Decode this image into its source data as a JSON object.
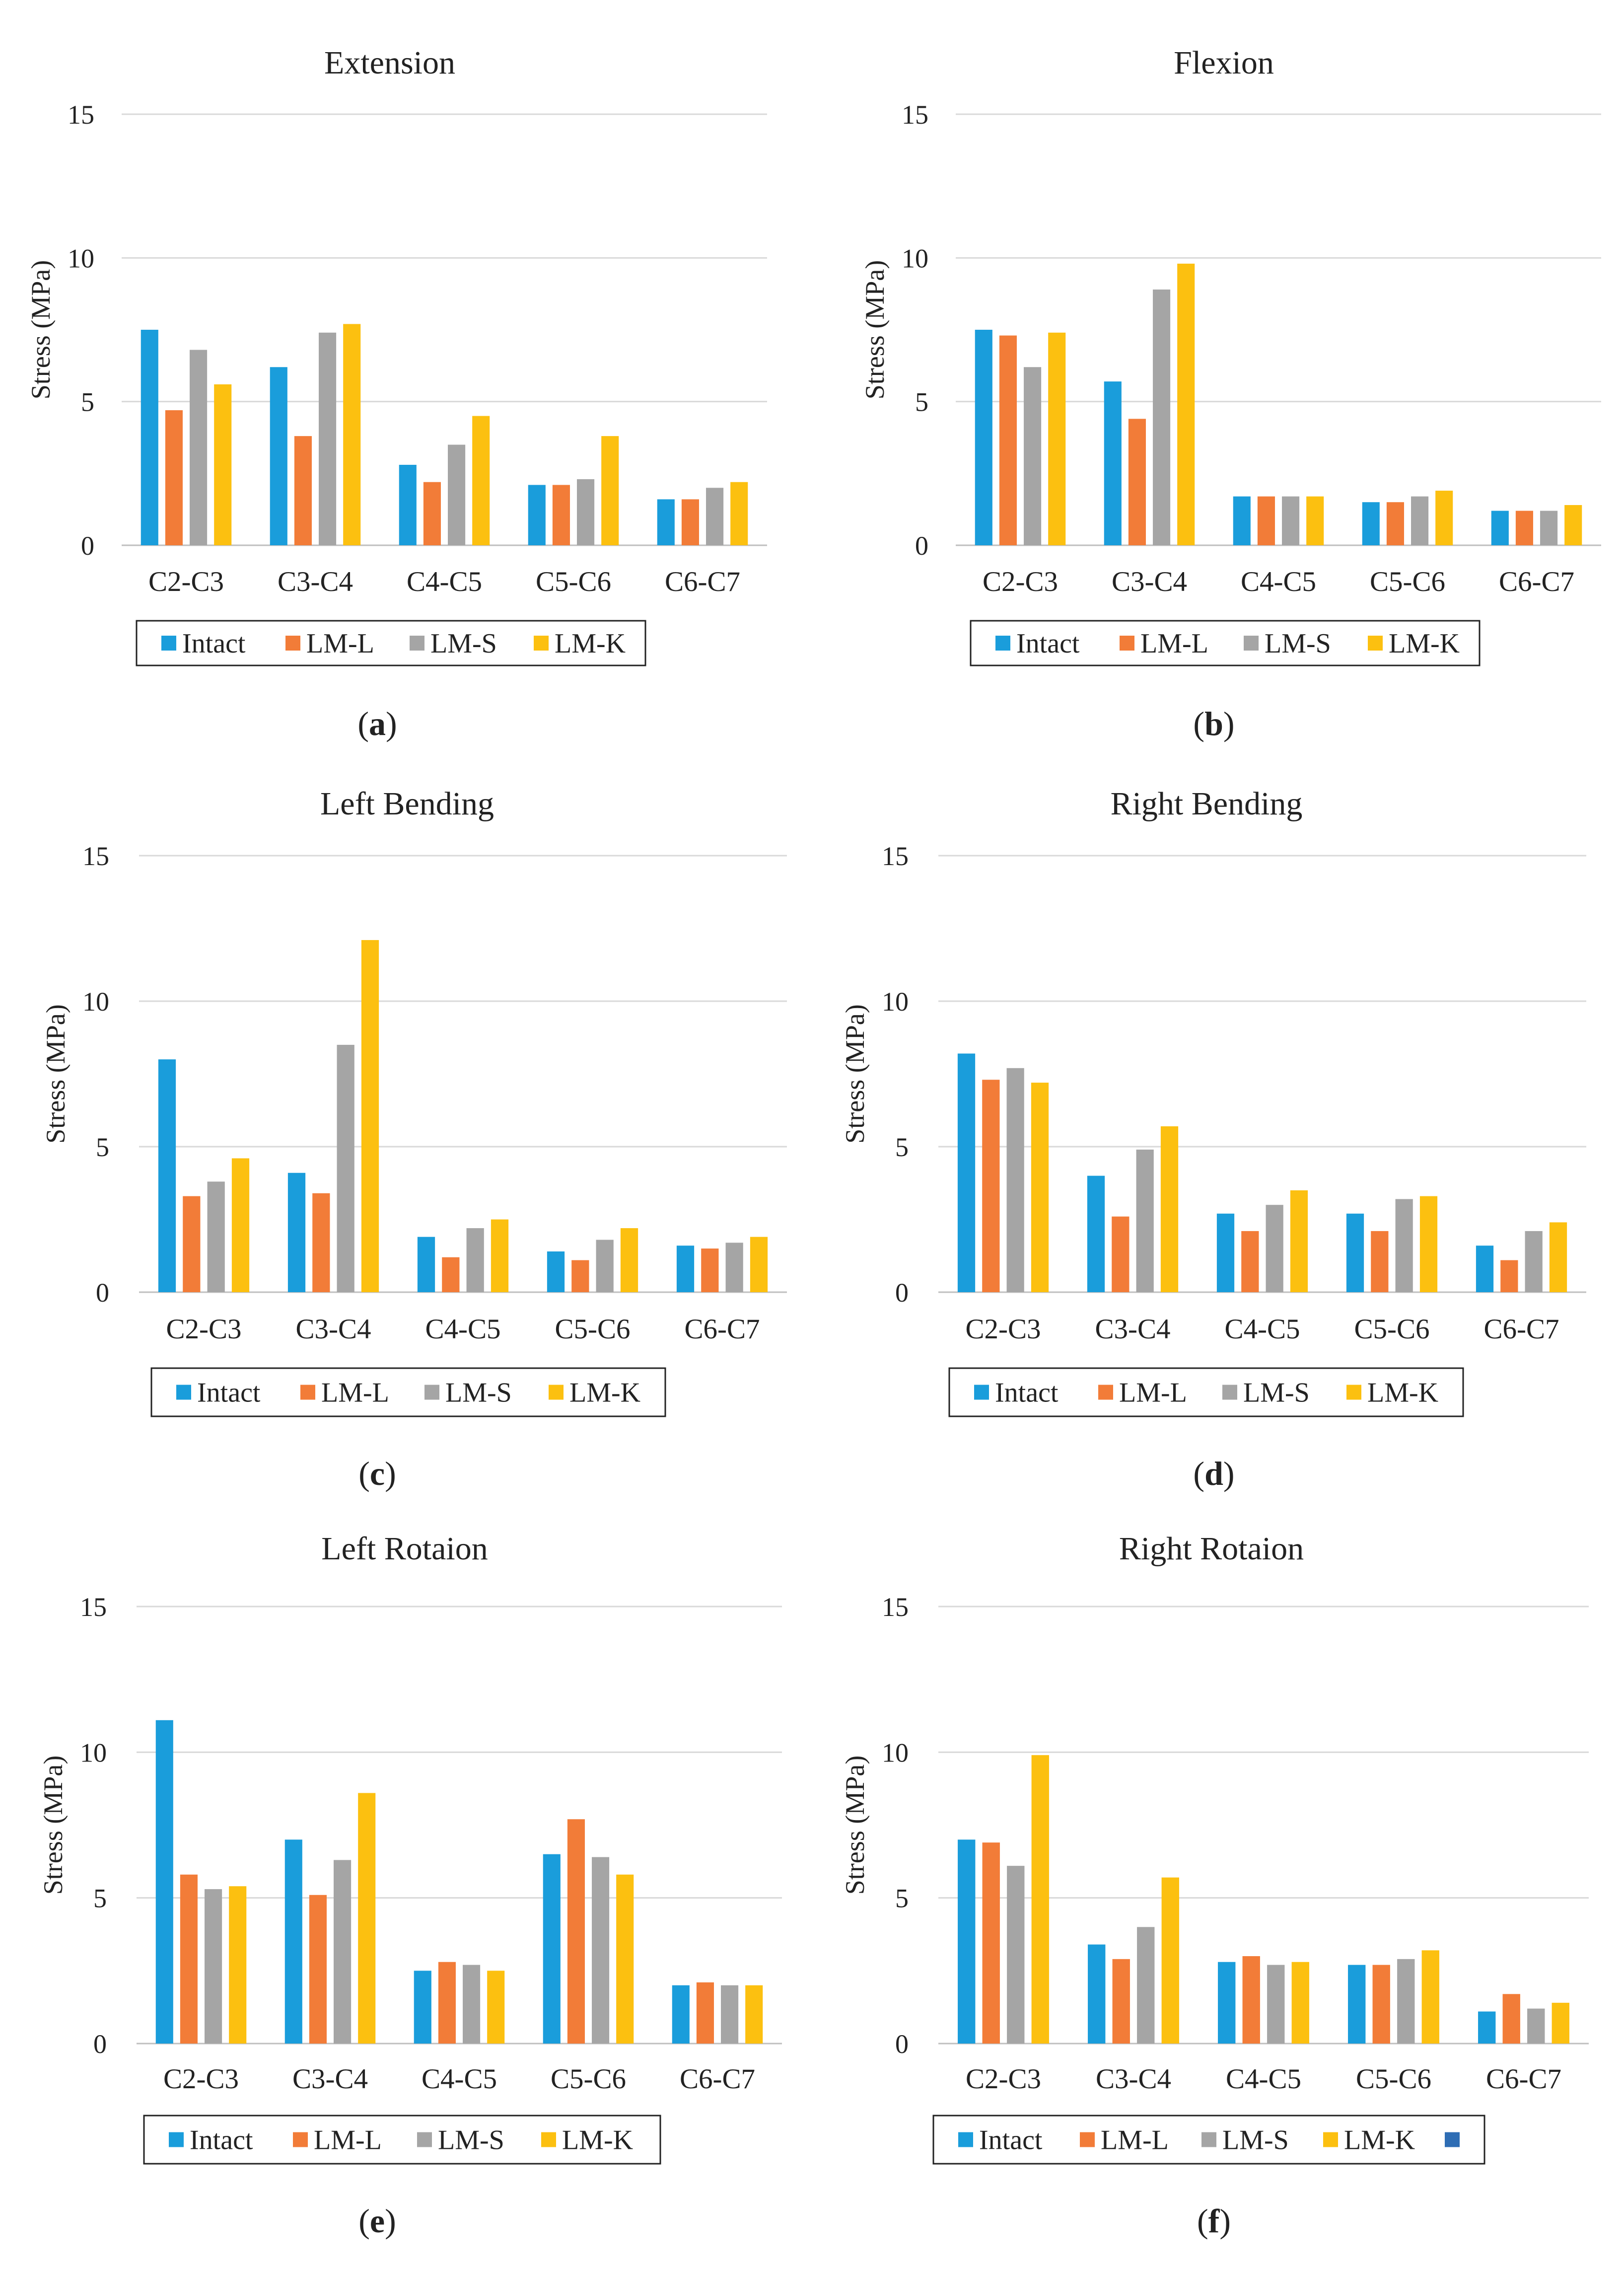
{
  "colors": {
    "Intact": "#1A9DDB",
    "LM-L": "#F27C38",
    "LM-S": "#A5A5A5",
    "LM-K": "#FCC010",
    "extra": "#2E6DB4",
    "grid": "#D9D9D9",
    "text": "#222222"
  },
  "chart_data": [
    {
      "type": "bar",
      "title": "Extension",
      "panel_label": "(a)",
      "label_letter": "a",
      "ylabel": "Stress (MPa)",
      "ylim": [
        0,
        15
      ],
      "yticks": [
        0,
        5,
        10,
        15
      ],
      "categories": [
        "C2-C3",
        "C3-C4",
        "C4-C5",
        "C5-C6",
        "C6-C7"
      ],
      "series": [
        {
          "name": "Intact",
          "values": [
            7.5,
            6.2,
            2.8,
            2.1,
            1.6
          ]
        },
        {
          "name": "LM-L",
          "values": [
            4.7,
            3.8,
            2.2,
            2.1,
            1.6
          ]
        },
        {
          "name": "LM-S",
          "values": [
            6.8,
            7.4,
            3.5,
            2.3,
            2.0
          ]
        },
        {
          "name": "LM-K",
          "values": [
            5.6,
            7.7,
            4.5,
            3.8,
            2.2
          ]
        }
      ],
      "legend_entries": [
        "Intact",
        "LM-L",
        "LM-S",
        "LM-K"
      ]
    },
    {
      "type": "bar",
      "title": "Flexion",
      "panel_label": "(b)",
      "label_letter": "b",
      "ylabel": "Stress (MPa)",
      "ylim": [
        0,
        15
      ],
      "yticks": [
        0,
        5,
        10,
        15
      ],
      "categories": [
        "C2-C3",
        "C3-C4",
        "C4-C5",
        "C5-C6",
        "C6-C7"
      ],
      "series": [
        {
          "name": "Intact",
          "values": [
            7.5,
            5.7,
            1.7,
            1.5,
            1.2
          ]
        },
        {
          "name": "LM-L",
          "values": [
            7.3,
            4.4,
            1.7,
            1.5,
            1.2
          ]
        },
        {
          "name": "LM-S",
          "values": [
            6.2,
            8.9,
            1.7,
            1.7,
            1.2
          ]
        },
        {
          "name": "LM-K",
          "values": [
            7.4,
            9.8,
            1.7,
            1.9,
            1.4
          ]
        }
      ],
      "legend_entries": [
        "Intact",
        "LM-L",
        "LM-S",
        "LM-K"
      ]
    },
    {
      "type": "bar",
      "title": "Left Bending",
      "panel_label": "(c)",
      "label_letter": "c",
      "ylabel": "Stress (MPa)",
      "ylim": [
        0,
        15
      ],
      "yticks": [
        0,
        5,
        10,
        15
      ],
      "categories": [
        "C2-C3",
        "C3-C4",
        "C4-C5",
        "C5-C6",
        "C6-C7"
      ],
      "series": [
        {
          "name": "Intact",
          "values": [
            8.0,
            4.1,
            1.9,
            1.4,
            1.6
          ]
        },
        {
          "name": "LM-L",
          "values": [
            3.3,
            3.4,
            1.2,
            1.1,
            1.5
          ]
        },
        {
          "name": "LM-S",
          "values": [
            3.8,
            8.5,
            2.2,
            1.8,
            1.7
          ]
        },
        {
          "name": "LM-K",
          "values": [
            4.6,
            12.1,
            2.5,
            2.2,
            1.9
          ]
        }
      ],
      "legend_entries": [
        "Intact",
        "LM-L",
        "LM-S",
        "LM-K"
      ]
    },
    {
      "type": "bar",
      "title": "Right Bending",
      "panel_label": "(d)",
      "label_letter": "d",
      "ylabel": "Stress (MPa)",
      "ylim": [
        0,
        15
      ],
      "yticks": [
        0,
        5,
        10,
        15
      ],
      "categories": [
        "C2-C3",
        "C3-C4",
        "C4-C5",
        "C5-C6",
        "C6-C7"
      ],
      "series": [
        {
          "name": "Intact",
          "values": [
            8.2,
            4.0,
            2.7,
            2.7,
            1.6
          ]
        },
        {
          "name": "LM-L",
          "values": [
            7.3,
            2.6,
            2.1,
            2.1,
            1.1
          ]
        },
        {
          "name": "LM-S",
          "values": [
            7.7,
            4.9,
            3.0,
            3.2,
            2.1
          ]
        },
        {
          "name": "LM-K",
          "values": [
            7.2,
            5.7,
            3.5,
            3.3,
            2.4
          ]
        }
      ],
      "legend_entries": [
        "Intact",
        "LM-L",
        "LM-S",
        "LM-K"
      ]
    },
    {
      "type": "bar",
      "title": "Left Rotaion",
      "panel_label": "(e)",
      "label_letter": "e",
      "ylabel": "Stress (MPa)",
      "ylim": [
        0,
        15
      ],
      "yticks": [
        0,
        5,
        10,
        15
      ],
      "categories": [
        "C2-C3",
        "C3-C4",
        "C4-C5",
        "C5-C6",
        "C6-C7"
      ],
      "series": [
        {
          "name": "Intact",
          "values": [
            11.1,
            7.0,
            2.5,
            6.5,
            2.0
          ]
        },
        {
          "name": "LM-L",
          "values": [
            5.8,
            5.1,
            2.8,
            7.7,
            2.1
          ]
        },
        {
          "name": "LM-S",
          "values": [
            5.3,
            6.3,
            2.7,
            6.4,
            2.0
          ]
        },
        {
          "name": "LM-K",
          "values": [
            5.4,
            8.6,
            2.5,
            5.8,
            2.0
          ]
        }
      ],
      "legend_entries": [
        "Intact",
        "LM-L",
        "LM-S",
        "LM-K"
      ]
    },
    {
      "type": "bar",
      "title": "Right Rotaion",
      "panel_label": "(f)",
      "label_letter": "f",
      "ylabel": "Stress (MPa)",
      "ylim": [
        0,
        15
      ],
      "yticks": [
        0,
        5,
        10,
        15
      ],
      "categories": [
        "C2-C3",
        "C3-C4",
        "C4-C5",
        "C5-C6",
        "C6-C7"
      ],
      "series": [
        {
          "name": "Intact",
          "values": [
            7.0,
            3.4,
            2.8,
            2.7,
            1.1
          ]
        },
        {
          "name": "LM-L",
          "values": [
            6.9,
            2.9,
            3.0,
            2.7,
            1.7
          ]
        },
        {
          "name": "LM-S",
          "values": [
            6.1,
            4.0,
            2.7,
            2.9,
            1.2
          ]
        },
        {
          "name": "LM-K",
          "values": [
            9.9,
            5.7,
            2.8,
            3.2,
            1.4
          ]
        }
      ],
      "legend_entries": [
        "Intact",
        "LM-L",
        "LM-S",
        "LM-K",
        ""
      ]
    }
  ]
}
